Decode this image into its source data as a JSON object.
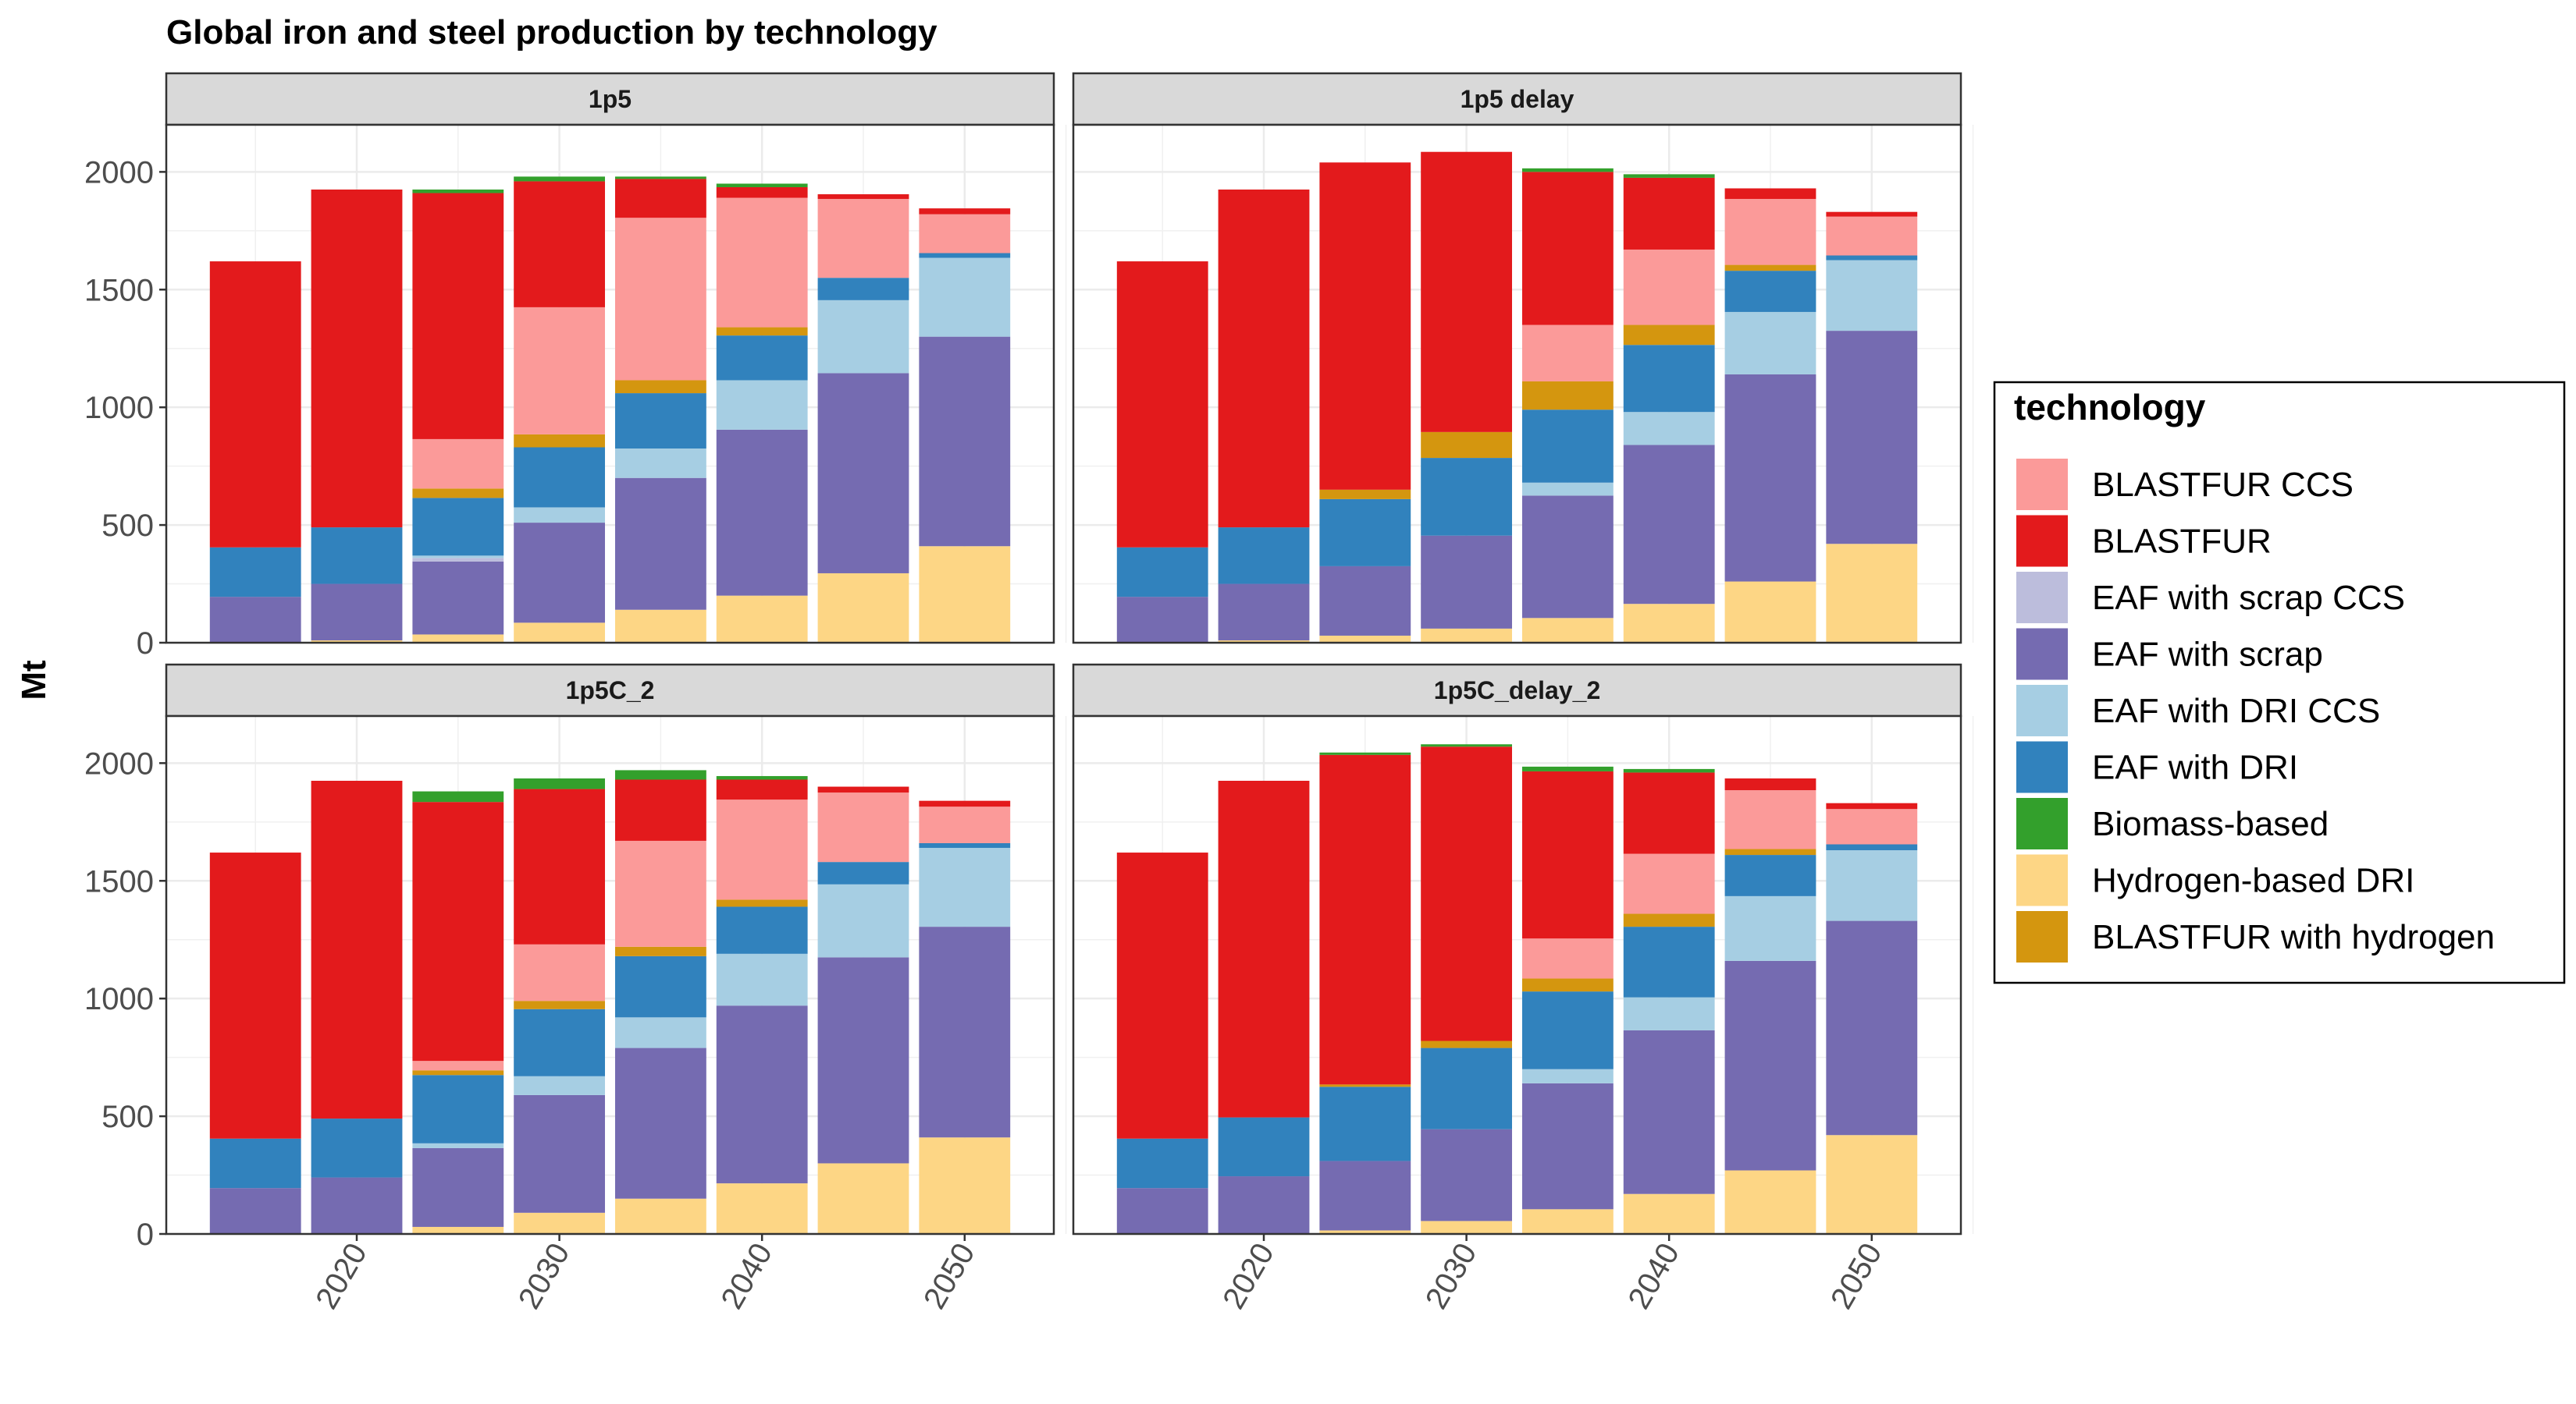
{
  "chart_data": {
    "type": "bar",
    "stacked": true,
    "title": "Global iron and steel production by technology",
    "xlabel": "",
    "ylabel": "Mt",
    "ylim": [
      0,
      2200
    ],
    "y_ticks": [
      0,
      500,
      1000,
      1500,
      2000
    ],
    "x_ticks": [
      2020,
      2030,
      2040,
      2050
    ],
    "x": [
      2015,
      2020,
      2025,
      2030,
      2035,
      2040,
      2045,
      2050
    ],
    "grid": true,
    "legend": {
      "title": "technology",
      "placement": "right",
      "entries": [
        {
          "name": "BLASTFUR CCS",
          "color": "#fb9a99"
        },
        {
          "name": "BLASTFUR",
          "color": "#e31a1c"
        },
        {
          "name": "EAF with scrap CCS",
          "color": "#bcbddc"
        },
        {
          "name": "EAF with scrap",
          "color": "#756bb1"
        },
        {
          "name": "EAF with DRI CCS",
          "color": "#a6cee3"
        },
        {
          "name": "EAF with DRI",
          "color": "#3182bd"
        },
        {
          "name": "Biomass-based",
          "color": "#33a02c"
        },
        {
          "name": "Hydrogen-based DRI",
          "color": "#fdd685"
        },
        {
          "name": "BLASTFUR with hydrogen",
          "color": "#d4960f"
        }
      ]
    },
    "stack_order_bottom_to_top": [
      "Hydrogen-based DRI",
      "EAF with scrap",
      "EAF with scrap CCS",
      "EAF with DRI CCS",
      "EAF with DRI",
      "BLASTFUR with hydrogen",
      "BLASTFUR CCS",
      "BLASTFUR",
      "Biomass-based"
    ],
    "panels": [
      {
        "label": "1p5",
        "series": [
          {
            "name": "Hydrogen-based DRI",
            "values": [
              0,
              10,
              35,
              85,
              140,
              200,
              295,
              410
            ]
          },
          {
            "name": "EAF with scrap",
            "values": [
              195,
              240,
              310,
              425,
              560,
              705,
              850,
              890
            ]
          },
          {
            "name": "EAF with scrap CCS",
            "values": [
              0,
              0,
              15,
              0,
              0,
              0,
              0,
              0
            ]
          },
          {
            "name": "EAF with DRI CCS",
            "values": [
              0,
              0,
              10,
              65,
              125,
              210,
              310,
              335
            ]
          },
          {
            "name": "EAF with DRI",
            "values": [
              210,
              240,
              245,
              255,
              235,
              190,
              95,
              20
            ]
          },
          {
            "name": "BLASTFUR with hydrogen",
            "values": [
              0,
              0,
              40,
              55,
              55,
              35,
              0,
              0
            ]
          },
          {
            "name": "BLASTFUR CCS",
            "values": [
              0,
              0,
              210,
              540,
              690,
              550,
              335,
              165
            ]
          },
          {
            "name": "BLASTFUR",
            "values": [
              1215,
              1435,
              1045,
              535,
              165,
              45,
              20,
              25
            ]
          },
          {
            "name": "Biomass-based",
            "values": [
              0,
              0,
              15,
              20,
              10,
              15,
              0,
              0
            ]
          }
        ]
      },
      {
        "label": "1p5 delay",
        "series": [
          {
            "name": "Hydrogen-based DRI",
            "values": [
              0,
              10,
              30,
              60,
              105,
              165,
              260,
              420
            ]
          },
          {
            "name": "EAF with scrap",
            "values": [
              195,
              240,
              295,
              395,
              520,
              675,
              880,
              905
            ]
          },
          {
            "name": "EAF with scrap CCS",
            "values": [
              0,
              0,
              0,
              0,
              0,
              0,
              0,
              0
            ]
          },
          {
            "name": "EAF with DRI CCS",
            "values": [
              0,
              0,
              0,
              0,
              55,
              140,
              265,
              300
            ]
          },
          {
            "name": "EAF with DRI",
            "values": [
              210,
              240,
              285,
              330,
              310,
              285,
              175,
              20
            ]
          },
          {
            "name": "BLASTFUR with hydrogen",
            "values": [
              0,
              0,
              40,
              110,
              120,
              85,
              25,
              0
            ]
          },
          {
            "name": "BLASTFUR CCS",
            "values": [
              0,
              0,
              0,
              0,
              240,
              320,
              280,
              165
            ]
          },
          {
            "name": "BLASTFUR",
            "values": [
              1215,
              1435,
              1390,
              1190,
              650,
              305,
              45,
              20
            ]
          },
          {
            "name": "Biomass-based",
            "values": [
              0,
              0,
              0,
              0,
              15,
              15,
              0,
              0
            ]
          }
        ]
      },
      {
        "label": "1p5C_2",
        "series": [
          {
            "name": "Hydrogen-based DRI",
            "values": [
              0,
              0,
              30,
              90,
              150,
              215,
              300,
              410
            ]
          },
          {
            "name": "EAF with scrap",
            "values": [
              195,
              240,
              335,
              500,
              640,
              755,
              875,
              895
            ]
          },
          {
            "name": "EAF with scrap CCS",
            "values": [
              0,
              0,
              0,
              0,
              0,
              0,
              0,
              0
            ]
          },
          {
            "name": "EAF with DRI CCS",
            "values": [
              0,
              0,
              20,
              80,
              130,
              220,
              310,
              335
            ]
          },
          {
            "name": "EAF with DRI",
            "values": [
              210,
              250,
              290,
              285,
              260,
              200,
              95,
              20
            ]
          },
          {
            "name": "BLASTFUR with hydrogen",
            "values": [
              0,
              0,
              20,
              35,
              40,
              30,
              0,
              0
            ]
          },
          {
            "name": "BLASTFUR CCS",
            "values": [
              0,
              0,
              40,
              240,
              450,
              425,
              295,
              155
            ]
          },
          {
            "name": "BLASTFUR",
            "values": [
              1215,
              1435,
              1100,
              660,
              260,
              85,
              25,
              25
            ]
          },
          {
            "name": "Biomass-based",
            "values": [
              0,
              0,
              45,
              45,
              40,
              15,
              0,
              0
            ]
          }
        ]
      },
      {
        "label": "1p5C_delay_2",
        "series": [
          {
            "name": "Hydrogen-based DRI",
            "values": [
              0,
              0,
              15,
              55,
              105,
              170,
              270,
              420
            ]
          },
          {
            "name": "EAF with scrap",
            "values": [
              195,
              245,
              295,
              390,
              535,
              695,
              890,
              910
            ]
          },
          {
            "name": "EAF with scrap CCS",
            "values": [
              0,
              0,
              0,
              0,
              0,
              0,
              0,
              0
            ]
          },
          {
            "name": "EAF with DRI CCS",
            "values": [
              0,
              0,
              0,
              0,
              60,
              140,
              275,
              300
            ]
          },
          {
            "name": "EAF with DRI",
            "values": [
              210,
              250,
              315,
              345,
              330,
              300,
              175,
              25
            ]
          },
          {
            "name": "BLASTFUR with hydrogen",
            "values": [
              0,
              0,
              10,
              30,
              55,
              55,
              25,
              0
            ]
          },
          {
            "name": "BLASTFUR CCS",
            "values": [
              0,
              0,
              0,
              0,
              170,
              255,
              250,
              150
            ]
          },
          {
            "name": "BLASTFUR",
            "values": [
              1215,
              1430,
              1400,
              1250,
              710,
              345,
              50,
              25
            ]
          },
          {
            "name": "Biomass-based",
            "values": [
              0,
              0,
              10,
              10,
              20,
              15,
              0,
              0
            ]
          }
        ]
      }
    ]
  }
}
